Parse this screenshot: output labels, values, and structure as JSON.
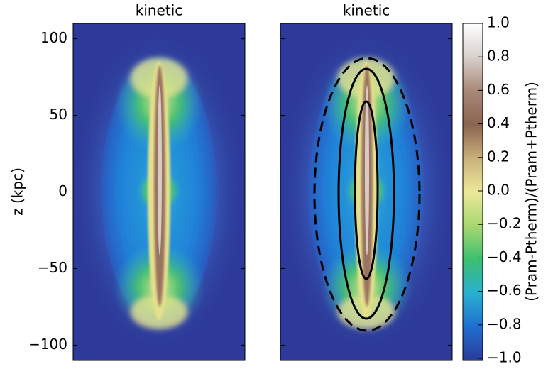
{
  "chart_data": {
    "type": "heatmap",
    "panels": [
      {
        "title": "kinetic"
      },
      {
        "title": "kinetic"
      }
    ],
    "ylabel": "z (kpc)",
    "ylim": [
      -110,
      110
    ],
    "yticks": [
      100,
      50,
      0,
      {
        "value": -50,
        "label": "−50"
      },
      {
        "value": -100,
        "label": "−100"
      }
    ],
    "colorbar": {
      "label": "(Pram-Ptherm)/(Pram+Ptherm)",
      "lim": [
        -1,
        1
      ],
      "ticks": [
        {
          "value": 1,
          "label": "1.0"
        },
        {
          "value": 0.8,
          "label": "0.8"
        },
        {
          "value": 0.6,
          "label": "0.6"
        },
        {
          "value": 0.4,
          "label": "0.4"
        },
        {
          "value": 0.2,
          "label": "0.2"
        },
        {
          "value": 0,
          "label": "0.0"
        },
        {
          "value": -0.2,
          "label": "−0.2"
        },
        {
          "value": -0.4,
          "label": "−0.4"
        },
        {
          "value": -0.6,
          "label": "−0.6"
        },
        {
          "value": -0.8,
          "label": "−0.8"
        },
        {
          "value": -1,
          "label": "−1.0"
        }
      ]
    }
  }
}
